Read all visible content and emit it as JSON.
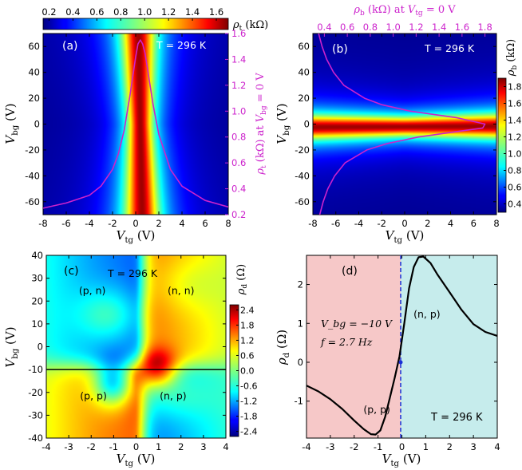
{
  "colors": {
    "magenta": "#cc22cc",
    "black": "#000000",
    "blue_dash": "#1a2fd6",
    "shade_red": "#f6c8c8",
    "shade_cyan": "#c6ecec"
  },
  "chart_data": [
    {
      "id": "a",
      "panel_label": "(a)",
      "type": "heatmap",
      "temperature": "T = 296 K",
      "xlabel": "V_tg (V)",
      "ylabel": "V_bg (V)",
      "xlim": [
        -8,
        8
      ],
      "ylim": [
        -70,
        70
      ],
      "x_ticks": [
        "-8",
        "-6",
        "-4",
        "-2",
        "0",
        "2",
        "4",
        "6",
        "8"
      ],
      "y_ticks": [
        "-60",
        "-40",
        "-20",
        "0",
        "20",
        "40",
        "60"
      ],
      "colorbar": {
        "label": "ρ_t (kΩ)",
        "orientation": "horizontal",
        "range": [
          0.15,
          1.7
        ],
        "ticks": [
          "0.2",
          "0.4",
          "0.6",
          "0.8",
          "1.0",
          "1.2",
          "1.4",
          "1.6"
        ]
      },
      "right_axis": {
        "label": "ρ_t (kΩ) at V_bg = 0 V",
        "range": [
          0.2,
          1.6
        ],
        "ticks": [
          "0.2",
          "0.4",
          "0.6",
          "0.8",
          "1.0",
          "1.2",
          "1.4",
          "1.6"
        ]
      },
      "heatmap_model": {
        "peak_kohm": 1.65,
        "base_kohm": 0.17,
        "center_vtg": 0.4,
        "sigma_vtg": 1.1
      },
      "line_cut": {
        "name": "ρ_t at V_bg = 0 V",
        "color": "#cc22cc",
        "x": [
          -8,
          -6,
          -4,
          -3,
          -2,
          -1.5,
          -1,
          -0.5,
          0,
          0.2,
          0.4,
          0.6,
          0.8,
          1,
          1.5,
          2,
          3,
          4,
          6,
          8
        ],
        "y": [
          0.25,
          0.29,
          0.35,
          0.42,
          0.55,
          0.67,
          0.85,
          1.12,
          1.42,
          1.52,
          1.55,
          1.52,
          1.45,
          1.34,
          1.05,
          0.82,
          0.55,
          0.42,
          0.31,
          0.26
        ]
      }
    },
    {
      "id": "b",
      "panel_label": "(b)",
      "type": "heatmap",
      "temperature": "T = 296 K",
      "xlabel": "V_tg (V)",
      "ylabel": "V_bg (V)",
      "xlim": [
        -8,
        8
      ],
      "ylim": [
        -70,
        70
      ],
      "x_ticks": [
        "-8",
        "-6",
        "-4",
        "-2",
        "0",
        "2",
        "4",
        "6",
        "8"
      ],
      "y_ticks": [
        "-60",
        "-40",
        "-20",
        "0",
        "20",
        "40",
        "60"
      ],
      "colorbar": {
        "label": "ρ_b (kΩ)",
        "orientation": "vertical",
        "range": [
          0.3,
          1.9
        ],
        "ticks": [
          "0.4",
          "0.6",
          "0.8",
          "1.0",
          "1.2",
          "1.4",
          "1.6",
          "1.8"
        ]
      },
      "top_axis": {
        "label": "ρ_b (kΩ) at V_tg = 0 V",
        "range": [
          0.3,
          1.9
        ],
        "ticks": [
          "0.4",
          "0.6",
          "0.8",
          "1.0",
          "1.2",
          "1.4",
          "1.6",
          "1.8"
        ]
      },
      "heatmap_model": {
        "peak_kohm": 1.85,
        "base_kohm": 0.32,
        "center_vbg": -2,
        "sigma_vbg": 7.5
      },
      "line_cut": {
        "name": "ρ_b at V_tg = 0 V",
        "color": "#cc22cc",
        "vbg": [
          -70,
          -60,
          -50,
          -40,
          -30,
          -20,
          -15,
          -10,
          -5,
          -3,
          0,
          5,
          10,
          15,
          20,
          30,
          40,
          50,
          60,
          70
        ],
        "rho": [
          0.36,
          0.39,
          0.43,
          0.49,
          0.58,
          0.77,
          0.95,
          1.22,
          1.62,
          1.78,
          1.8,
          1.55,
          1.15,
          0.9,
          0.75,
          0.57,
          0.48,
          0.42,
          0.38,
          0.35
        ]
      }
    },
    {
      "id": "c",
      "panel_label": "(c)",
      "type": "heatmap",
      "temperature": "T = 296 K",
      "xlabel": "V_tg (V)",
      "ylabel": "V_bg (V)",
      "xlim": [
        -4,
        4
      ],
      "ylim": [
        -40,
        40
      ],
      "x_ticks": [
        "-4",
        "-3",
        "-2",
        "-1",
        "0",
        "1",
        "2",
        "3",
        "4"
      ],
      "y_ticks": [
        "-40",
        "-30",
        "-20",
        "-10",
        "0",
        "10",
        "20",
        "30",
        "40"
      ],
      "colorbar": {
        "label": "ρ_d (Ω)",
        "orientation": "vertical",
        "range": [
          -2.6,
          2.6
        ],
        "ticks": [
          "2.4",
          "1.8",
          "1.2",
          "0.6",
          "0.0",
          "-0.6",
          "-1.2",
          "-1.8",
          "-2.4"
        ]
      },
      "regions": [
        "(p, n)",
        "(n, n)",
        "(p, p)",
        "(n, p)"
      ],
      "horizontal_line_vbg": -10
    },
    {
      "id": "d",
      "panel_label": "(d)",
      "type": "line",
      "temperature": "T = 296 K",
      "conditions": [
        "V_bg = −10 V",
        "f = 2.7 Hz"
      ],
      "xlabel": "V_tg (V)",
      "ylabel": "ρ_d (Ω)",
      "xlim": [
        -4,
        4
      ],
      "ylim": [
        -1.95,
        2.75
      ],
      "x_ticks": [
        "-4",
        "-3",
        "-2",
        "-1",
        "0",
        "1",
        "2",
        "3",
        "4"
      ],
      "y_ticks": [
        "-1",
        "0",
        "1",
        "2"
      ],
      "regions": [
        "(p, p)",
        "(n, p)"
      ],
      "zero_crossing_vtg": -0.05,
      "series": [
        {
          "name": "ρ_d",
          "x": [
            -4,
            -3.5,
            -3,
            -2.5,
            -2,
            -1.6,
            -1.3,
            -1.1,
            -0.9,
            -0.7,
            -0.5,
            -0.3,
            -0.1,
            0.1,
            0.3,
            0.5,
            0.7,
            0.9,
            1.2,
            1.5,
            2,
            2.5,
            3,
            3.5,
            4
          ],
          "y": [
            -0.6,
            -0.75,
            -0.95,
            -1.2,
            -1.5,
            -1.72,
            -1.85,
            -1.86,
            -1.75,
            -1.4,
            -0.9,
            -0.4,
            0.15,
            1.0,
            1.9,
            2.45,
            2.7,
            2.72,
            2.55,
            2.25,
            1.8,
            1.35,
            0.98,
            0.78,
            0.68
          ]
        }
      ]
    }
  ]
}
